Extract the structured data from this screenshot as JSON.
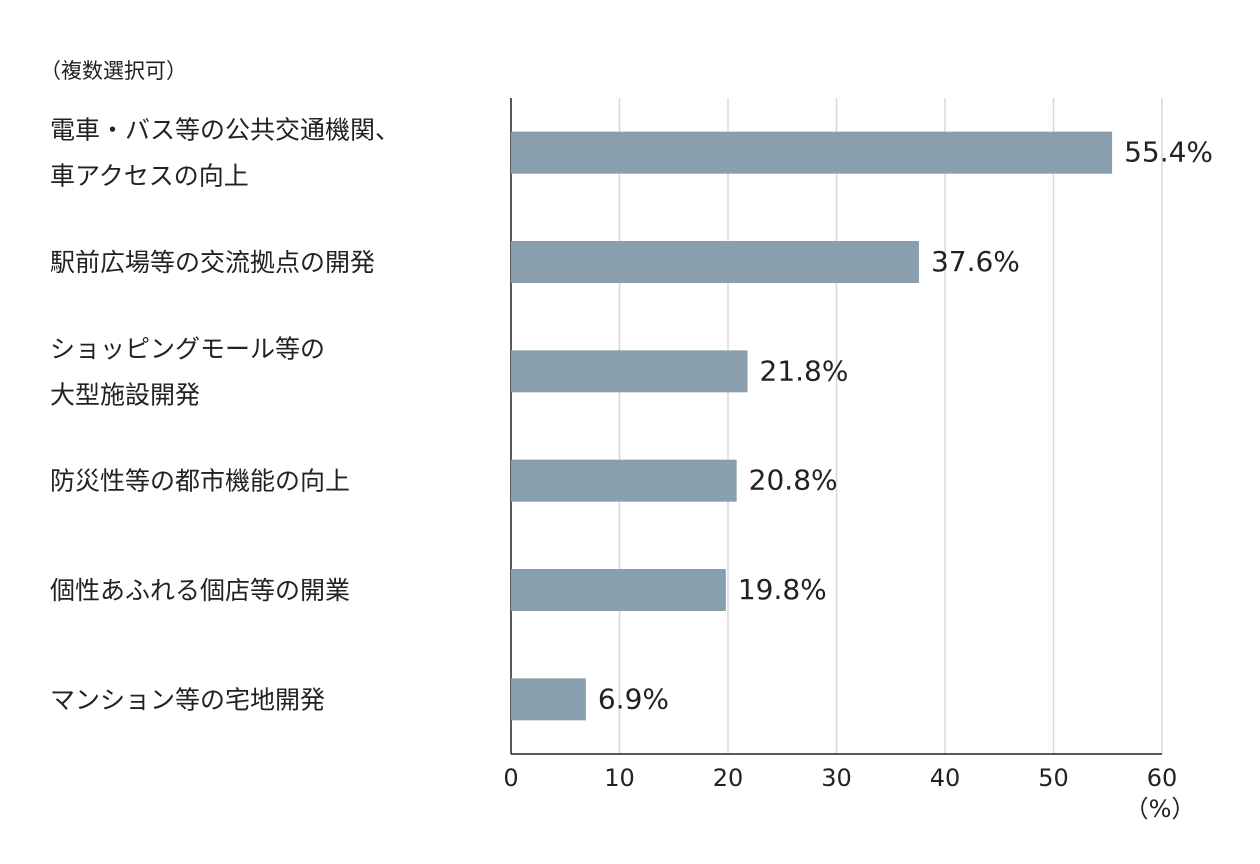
{
  "chart_data": {
    "type": "barh",
    "subtitle": "（複数選択可）",
    "x_label": "（%）",
    "categories": [
      [
        "電車・バス等の公共交通機関、",
        "車アクセスの向上"
      ],
      [
        "駅前広場等の交流拠点の開発"
      ],
      [
        "ショッピングモール等の",
        "大型施設開発"
      ],
      [
        "防災性等の都市機能の向上"
      ],
      [
        "個性あふれる個店等の開業"
      ],
      [
        "マンション等の宅地開発"
      ]
    ],
    "values": [
      55.4,
      37.6,
      21.8,
      20.8,
      19.8,
      6.9
    ],
    "value_labels": [
      "55.4%",
      "37.6%",
      "21.8%",
      "20.8%",
      "19.8%",
      "6.9%"
    ],
    "color": "#8a9fae",
    "xlim": [
      0,
      60
    ],
    "xticks": [
      0,
      10,
      20,
      30,
      40,
      50,
      60
    ],
    "grid": true
  }
}
